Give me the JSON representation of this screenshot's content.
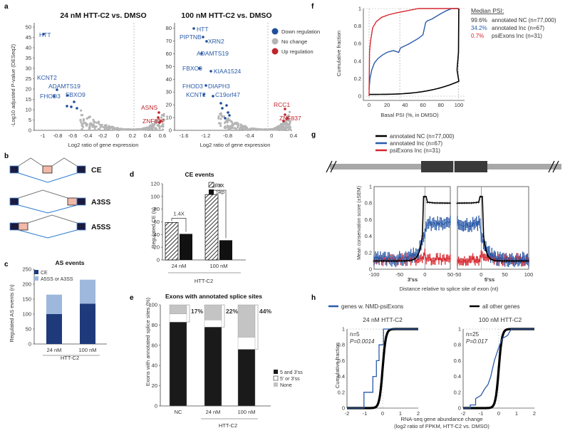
{
  "panel_a": {
    "label": "a",
    "ylabel": "-Log10 adjusted P-value (DESeq2)",
    "xlabel": "Log2 ratio of gene expression",
    "legend": [
      {
        "label": "Down regulation",
        "color": "#1f4e9c"
      },
      {
        "label": "No change",
        "color": "#b5b5b5"
      },
      {
        "label": "Up regulation",
        "color": "#c0242c"
      }
    ],
    "left": {
      "title": "24 nM HTT-C2 vs. DMSO",
      "xticks": [
        "-1",
        "-0.8",
        "-0.6",
        "-0.4",
        "-0.2",
        "0",
        "0.2",
        "0.4",
        "0.6"
      ],
      "yticks": [
        "0",
        "5",
        "10",
        "15",
        "20",
        "25",
        "30",
        "35",
        "40",
        "45",
        "50"
      ],
      "down_genes": [
        "HTT",
        "KCNT2",
        "ADAMTS19",
        "FHOD3",
        "FBXO9"
      ],
      "up_genes": [
        "ASNS",
        "ZNF837"
      ]
    },
    "right": {
      "title": "100 nM HTT-C2 vs. DMSO",
      "xticks": [
        "-1.6",
        "-1.2",
        "-0.8",
        "-0.4",
        "0",
        "0.4"
      ],
      "yticks": [
        "0",
        "10",
        "20",
        "30",
        "40",
        "50",
        "60",
        "70",
        "80"
      ],
      "down_genes": [
        "HTT",
        "PIPTNB",
        "XRN2",
        "ADAMTS19",
        "FBXO9",
        "KIAA1524",
        "FHOD3",
        "DIAPH3",
        "KCNT2",
        "C19orf47"
      ],
      "up_genes": [
        "RCC1",
        "ZNF837"
      ]
    }
  },
  "panel_b": {
    "label": "b",
    "events": [
      "CE",
      "A3SS",
      "A5SS"
    ]
  },
  "panel_c": {
    "label": "c",
    "title": "AS events",
    "ylabel": "Regulated AS events (n)",
    "xlabel": "HTT-C2",
    "chart_data": {
      "type": "bar",
      "categories": [
        "24 nM",
        "100 nM"
      ],
      "series": [
        {
          "name": "CE",
          "values": [
            100,
            135
          ],
          "color": "#1f3a7a"
        },
        {
          "name": "A5SS or A3SS",
          "values": [
            65,
            80
          ],
          "color": "#9db8dc"
        }
      ],
      "ylim": [
        0,
        250
      ],
      "yticks": [
        "0",
        "50",
        "100",
        "150",
        "200",
        "250"
      ]
    }
  },
  "panel_d": {
    "label": "d",
    "title": "CE events",
    "ylabel": "Regulated CE (n)",
    "xlabel": "HTT-C2",
    "chart_data": {
      "type": "bar",
      "categories": [
        "24 nM",
        "100 nM"
      ],
      "series": [
        {
          "name": "Inc",
          "values": [
            59,
            103
          ]
        },
        {
          "name": "Skp",
          "values": [
            41,
            31
          ]
        }
      ],
      "ylim": [
        0,
        120
      ],
      "yticks": [
        "0",
        "20",
        "40",
        "60",
        "80",
        "100",
        "120"
      ],
      "annotations": [
        "1.4X",
        "3.3X"
      ]
    }
  },
  "panel_e": {
    "label": "e",
    "title": "Exons with annotated splice sites",
    "ylabel": "Exons with annotated splice sites (%)",
    "xlabel": "HTT-C2",
    "chart_data": {
      "type": "bar",
      "categories": [
        "NC",
        "24 nM",
        "100 nM"
      ],
      "series": [
        {
          "name": "5 and 3'ss",
          "values": [
            83,
            78,
            56
          ],
          "color": "#1a1a1a"
        },
        {
          "name": "5' or 3'ss",
          "values": [
            8,
            7,
            12
          ],
          "color": "#ffffff"
        },
        {
          "name": "None",
          "values": [
            9,
            15,
            32
          ],
          "color": "#c4c4c4"
        }
      ],
      "ylim": [
        0,
        100
      ],
      "yticks": [
        "0",
        "20",
        "40",
        "60",
        "80",
        "100"
      ],
      "annotations": [
        "17%",
        "22%",
        "44%"
      ]
    }
  },
  "panel_f": {
    "label": "f",
    "ylabel": "Cumulative fraction",
    "xlabel": "Basal PSI (%, in DMSO)",
    "xticks": [
      "0",
      "20",
      "40",
      "60",
      "80",
      "100"
    ],
    "yticks": [
      "0",
      "0.2",
      "0.4",
      "0.6",
      "0.8",
      "1"
    ],
    "legend_title": "Median PSI:",
    "legend": [
      {
        "value": "99.6%",
        "label": "annotated NC (n=77,000)",
        "color": "#000000"
      },
      {
        "value": "34.2%",
        "label": "annotated Inc (n=67)",
        "color": "#2a5aa8"
      },
      {
        "value": "0.7%",
        "label": "psiExons Inc (n=31)",
        "color": "#d6262e"
      }
    ]
  },
  "panel_g": {
    "label": "g",
    "ylabel": "Mean conservation score (±SEM)",
    "xlabel": "Distance relative to splice site of exon (nt)",
    "left_xticks": [
      "-100",
      "-50",
      "0",
      "50"
    ],
    "right_xticks": [
      "-50",
      "0",
      "50",
      "100"
    ],
    "yticks": [
      "0",
      "0.2",
      "0.4",
      "0.6",
      "0.8",
      "1"
    ],
    "left_sublabel": "3'ss",
    "right_sublabel": "5'ss",
    "legend": [
      {
        "label": "annotated NC (n=77,000)",
        "color": "#000000"
      },
      {
        "label": "annotated Inc (n=67)",
        "color": "#2a5aa8"
      },
      {
        "label": "psiExons Inc (n=31)",
        "color": "#d6262e"
      }
    ]
  },
  "panel_h": {
    "label": "h",
    "ylabel": "Cumulative fraction",
    "xlabel_line1": "RNA-seq gene abundance change",
    "xlabel_line2": "(log2 ratio of FPKM, HTT-C2 vs. DMSO)",
    "legend": [
      {
        "label": "genes w. NMD-psiExons",
        "color": "#2a5aa8"
      },
      {
        "label": "all other genes",
        "color": "#000000"
      }
    ],
    "left": {
      "title": "24 nM HTT-C2",
      "n": "n=5",
      "p": "P=0.0014"
    },
    "right": {
      "title": "100 nM HTT-C2",
      "n": "n=25",
      "p": "P=0.017"
    },
    "xticks": [
      "-2",
      "-1",
      "0",
      "1",
      "2"
    ],
    "yticks": [
      "0",
      "0.2",
      "0.4",
      "0.6",
      "0.8",
      "1"
    ]
  }
}
